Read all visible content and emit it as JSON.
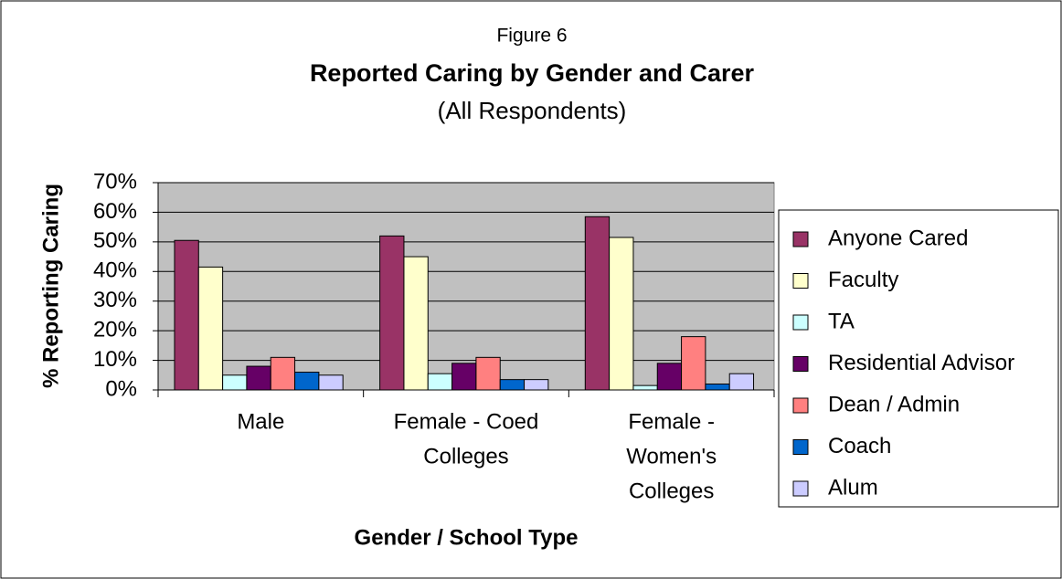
{
  "chart_data": {
    "type": "bar",
    "supertitle": "Figure 6",
    "title": "Reported Caring by Gender and Carer",
    "subtitle": "(All Respondents)",
    "ylabel": "% Reporting Caring",
    "xlabel": "Gender / School Type",
    "categories": [
      [
        "Male"
      ],
      [
        "Female - Coed",
        "Colleges"
      ],
      [
        "Female -",
        "Women's",
        "Colleges"
      ]
    ],
    "series": [
      {
        "name": "Anyone Cared",
        "color": "#993366",
        "values": [
          50.5,
          52,
          58.5
        ]
      },
      {
        "name": "Faculty",
        "color": "#ffffcc",
        "values": [
          41.5,
          45,
          51.5
        ]
      },
      {
        "name": "TA",
        "color": "#ccffff",
        "values": [
          5,
          5.5,
          1.5
        ]
      },
      {
        "name": "Residential Advisor",
        "color": "#660066",
        "values": [
          8,
          9,
          9
        ]
      },
      {
        "name": "Dean / Admin",
        "color": "#ff8080",
        "values": [
          11,
          11,
          18
        ]
      },
      {
        "name": "Coach",
        "color": "#0066cc",
        "values": [
          6,
          3.5,
          2
        ]
      },
      {
        "name": "Alum",
        "color": "#ccccff",
        "values": [
          5,
          3.5,
          5.5
        ]
      }
    ],
    "ylim": [
      0,
      70
    ],
    "yticks": [
      {
        "value": 0,
        "label": "0%"
      },
      {
        "value": 10,
        "label": "10%"
      },
      {
        "value": 20,
        "label": "20%"
      },
      {
        "value": 30,
        "label": "30%"
      },
      {
        "value": 40,
        "label": "40%"
      },
      {
        "value": 50,
        "label": "50%"
      },
      {
        "value": 60,
        "label": "60%"
      },
      {
        "value": 70,
        "label": "70%"
      }
    ],
    "grid": true,
    "legend": "right"
  }
}
